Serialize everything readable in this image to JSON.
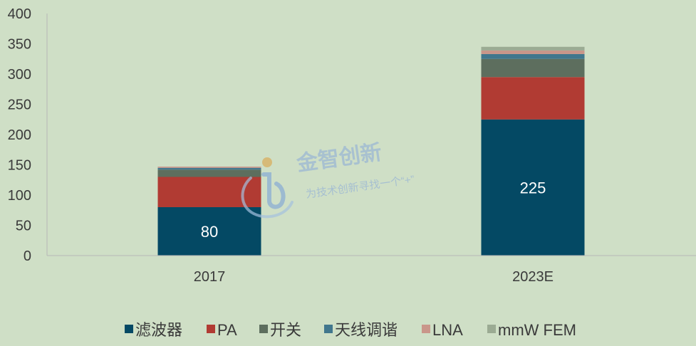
{
  "chart_data": {
    "type": "bar",
    "stacked": true,
    "categories": [
      "2017",
      "2023E"
    ],
    "series": [
      {
        "name": "滤波器",
        "values": [
          80,
          225
        ],
        "color": "#044964",
        "labels": [
          "80",
          "225"
        ]
      },
      {
        "name": "PA",
        "values": [
          50,
          70
        ],
        "color": "#b13b33"
      },
      {
        "name": "开关",
        "values": [
          12,
          30
        ],
        "color": "#5d6e5e"
      },
      {
        "name": "天线调谐",
        "values": [
          3,
          8
        ],
        "color": "#41778d"
      },
      {
        "name": "LNA",
        "values": [
          2,
          6
        ],
        "color": "#c9968a"
      },
      {
        "name": "mmW FEM",
        "values": [
          0,
          6
        ],
        "color": "#9bab93"
      }
    ],
    "ylim": [
      0,
      400
    ],
    "yticks": [
      0,
      50,
      100,
      150,
      200,
      250,
      300,
      350,
      400
    ],
    "grid": false,
    "legend": "bottom"
  },
  "watermark": {
    "title": "金智创新",
    "subtitle": "为技术创新寻找一个“+”"
  }
}
